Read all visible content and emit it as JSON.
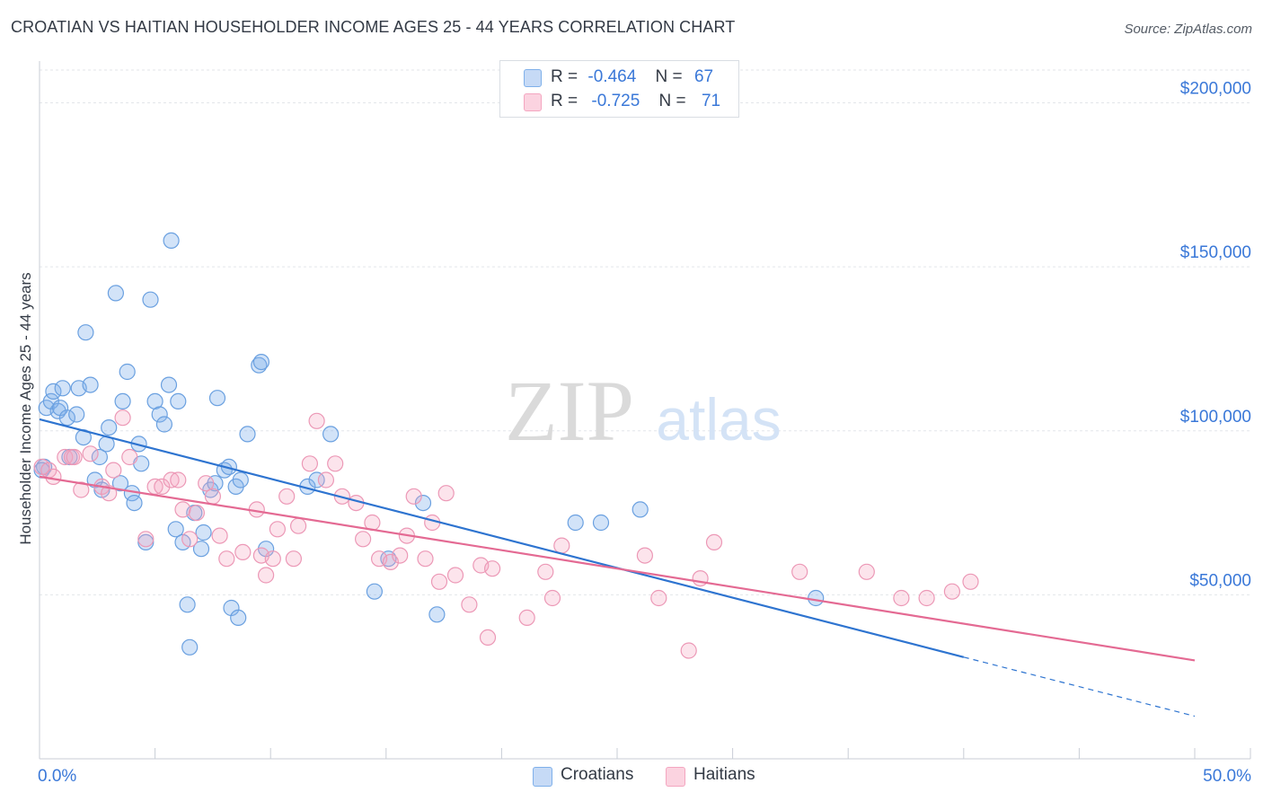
{
  "header": {
    "title": "CROATIAN VS HAITIAN HOUSEHOLDER INCOME AGES 25 - 44 YEARS CORRELATION CHART",
    "source": "Source: ZipAtlas.com"
  },
  "watermark": {
    "zip": "ZIP",
    "atlas": "atlas"
  },
  "legend": {
    "rows": [
      {
        "r_label": "R =",
        "r_value": "-0.464",
        "n_label": "N =",
        "n_value": "67",
        "color": "#7fb0ea"
      },
      {
        "r_label": "R =",
        "r_value": "-0.725",
        "n_label": "N =",
        "n_value": "71",
        "color": "#f4a6c0"
      }
    ]
  },
  "bottom_legend": {
    "croatians": "Croatians",
    "haitians": "Haitians"
  },
  "chart_data": {
    "type": "scatter",
    "title": "CROATIAN VS HAITIAN HOUSEHOLDER INCOME AGES 25 - 44 YEARS CORRELATION CHART",
    "xlabel": "",
    "ylabel": "Householder Income Ages 25 - 44 years",
    "xlim": [
      0,
      50
    ],
    "ylim": [
      0,
      210000
    ],
    "x_tick_labels": [
      "0.0%",
      "50.0%"
    ],
    "y_ticks": [
      50000,
      100000,
      150000,
      200000
    ],
    "y_tick_labels": [
      "$50,000",
      "$100,000",
      "$150,000",
      "$200,000"
    ],
    "grid": true,
    "legend_position": "top-center",
    "colors": {
      "croatians": "#5b95dc",
      "haitians": "#ef8fb0",
      "croatians_line": "#2e74d0",
      "haitians_line": "#e46a93"
    },
    "series": [
      {
        "name": "Croatians",
        "points": [
          [
            0.2,
            89000
          ],
          [
            0.3,
            107000
          ],
          [
            0.5,
            109000
          ],
          [
            0.6,
            112000
          ],
          [
            0.8,
            106000
          ],
          [
            0.9,
            107000
          ],
          [
            1.0,
            113000
          ],
          [
            1.2,
            104000
          ],
          [
            1.3,
            92000
          ],
          [
            1.6,
            105000
          ],
          [
            1.7,
            113000
          ],
          [
            1.9,
            98000
          ],
          [
            2.0,
            130000
          ],
          [
            2.2,
            114000
          ],
          [
            2.4,
            85000
          ],
          [
            2.6,
            92000
          ],
          [
            2.7,
            82000
          ],
          [
            3.0,
            101000
          ],
          [
            2.9,
            96000
          ],
          [
            3.3,
            142000
          ],
          [
            3.5,
            84000
          ],
          [
            3.6,
            109000
          ],
          [
            3.8,
            118000
          ],
          [
            4.0,
            81000
          ],
          [
            4.1,
            78000
          ],
          [
            4.3,
            96000
          ],
          [
            4.4,
            90000
          ],
          [
            4.6,
            66000
          ],
          [
            4.8,
            140000
          ],
          [
            5.0,
            109000
          ],
          [
            5.2,
            105000
          ],
          [
            5.4,
            102000
          ],
          [
            5.6,
            114000
          ],
          [
            5.7,
            158000
          ],
          [
            5.9,
            70000
          ],
          [
            6.0,
            109000
          ],
          [
            6.2,
            66000
          ],
          [
            6.4,
            47000
          ],
          [
            6.5,
            34000
          ],
          [
            6.7,
            75000
          ],
          [
            7.0,
            64000
          ],
          [
            7.1,
            69000
          ],
          [
            7.4,
            82000
          ],
          [
            7.6,
            84000
          ],
          [
            7.7,
            110000
          ],
          [
            8.0,
            88000
          ],
          [
            8.2,
            89000
          ],
          [
            8.3,
            46000
          ],
          [
            8.5,
            83000
          ],
          [
            8.6,
            43000
          ],
          [
            8.7,
            85000
          ],
          [
            9.0,
            99000
          ],
          [
            9.5,
            120000
          ],
          [
            9.6,
            121000
          ],
          [
            9.8,
            64000
          ],
          [
            11.6,
            83000
          ],
          [
            12.0,
            85000
          ],
          [
            12.6,
            99000
          ],
          [
            14.5,
            51000
          ],
          [
            15.1,
            61000
          ],
          [
            16.6,
            78000
          ],
          [
            17.2,
            44000
          ],
          [
            23.2,
            72000
          ],
          [
            24.3,
            72000
          ],
          [
            26.0,
            76000
          ],
          [
            33.6,
            49000
          ],
          [
            0.1,
            88000
          ]
        ],
        "trend": {
          "x": [
            0,
            40
          ],
          "y": [
            103500,
            31000
          ],
          "dashed_to": [
            50,
            13000
          ]
        }
      },
      {
        "name": "Haitians",
        "points": [
          [
            0.1,
            89000
          ],
          [
            0.4,
            88000
          ],
          [
            0.6,
            86000
          ],
          [
            1.1,
            92000
          ],
          [
            1.4,
            92000
          ],
          [
            1.8,
            82000
          ],
          [
            2.2,
            93000
          ],
          [
            2.7,
            83000
          ],
          [
            3.0,
            81000
          ],
          [
            3.2,
            88000
          ],
          [
            3.6,
            104000
          ],
          [
            3.9,
            92000
          ],
          [
            4.6,
            67000
          ],
          [
            5.0,
            83000
          ],
          [
            5.3,
            83000
          ],
          [
            5.7,
            85000
          ],
          [
            6.0,
            85000
          ],
          [
            6.2,
            76000
          ],
          [
            6.5,
            67000
          ],
          [
            6.8,
            75000
          ],
          [
            7.2,
            84000
          ],
          [
            7.5,
            80000
          ],
          [
            7.8,
            68000
          ],
          [
            8.1,
            61000
          ],
          [
            8.8,
            63000
          ],
          [
            9.4,
            76000
          ],
          [
            9.6,
            62000
          ],
          [
            9.8,
            56000
          ],
          [
            10.3,
            70000
          ],
          [
            10.7,
            80000
          ],
          [
            11.0,
            61000
          ],
          [
            11.2,
            71000
          ],
          [
            11.7,
            90000
          ],
          [
            12.0,
            103000
          ],
          [
            12.4,
            85000
          ],
          [
            12.8,
            90000
          ],
          [
            13.1,
            80000
          ],
          [
            13.7,
            78000
          ],
          [
            14.0,
            67000
          ],
          [
            14.4,
            72000
          ],
          [
            14.7,
            61000
          ],
          [
            15.2,
            60000
          ],
          [
            15.6,
            62000
          ],
          [
            15.9,
            68000
          ],
          [
            16.2,
            80000
          ],
          [
            16.7,
            61000
          ],
          [
            17.0,
            72000
          ],
          [
            17.3,
            54000
          ],
          [
            17.6,
            81000
          ],
          [
            18.0,
            56000
          ],
          [
            18.6,
            47000
          ],
          [
            19.1,
            59000
          ],
          [
            19.6,
            58000
          ],
          [
            19.4,
            37000
          ],
          [
            21.1,
            43000
          ],
          [
            21.9,
            57000
          ],
          [
            22.2,
            49000
          ],
          [
            22.6,
            65000
          ],
          [
            26.2,
            62000
          ],
          [
            26.8,
            49000
          ],
          [
            28.1,
            33000
          ],
          [
            28.6,
            55000
          ],
          [
            29.2,
            66000
          ],
          [
            32.9,
            57000
          ],
          [
            35.8,
            57000
          ],
          [
            37.3,
            49000
          ],
          [
            38.4,
            49000
          ],
          [
            39.5,
            51000
          ],
          [
            40.3,
            54000
          ],
          [
            1.5,
            92000
          ],
          [
            10.1,
            61000
          ]
        ],
        "trend": {
          "x": [
            0,
            50
          ],
          "y": [
            86000,
            30000
          ]
        }
      }
    ]
  }
}
